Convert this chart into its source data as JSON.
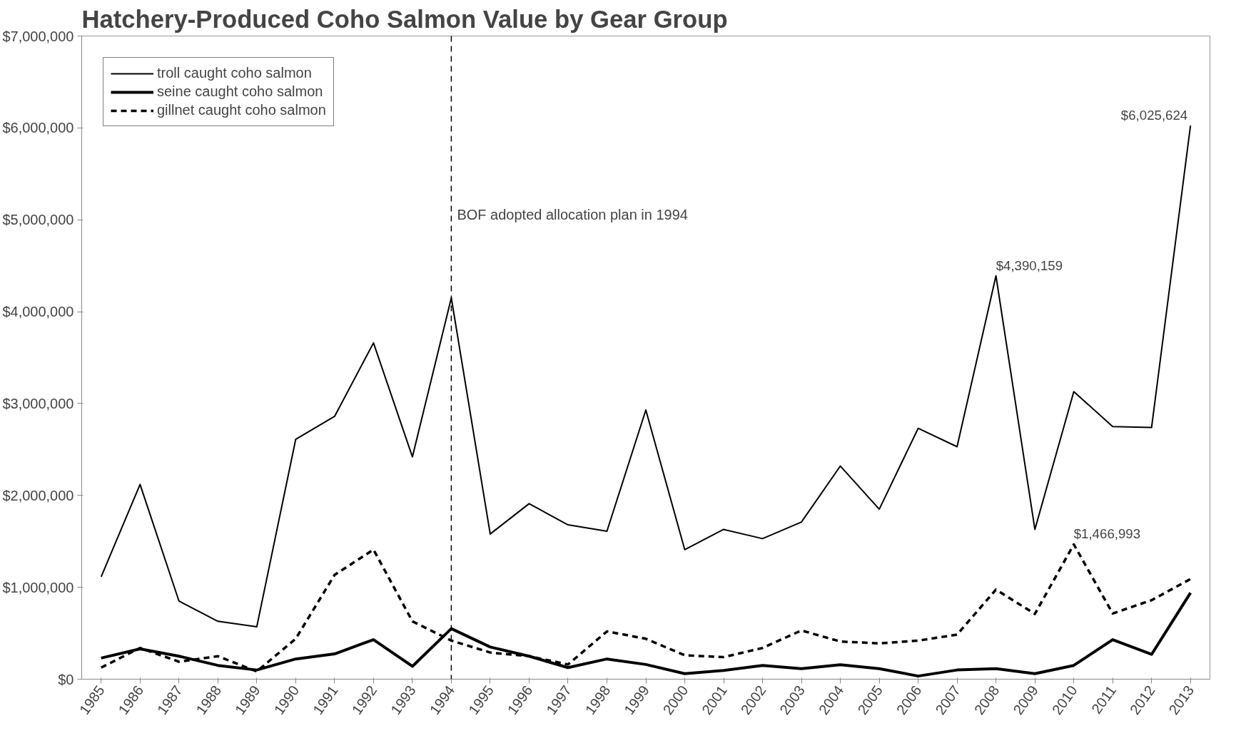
{
  "chart_data": {
    "type": "line",
    "title": "Hatchery-Produced Coho Salmon Value by Gear Group",
    "categories": [
      "1985",
      "1986",
      "1987",
      "1988",
      "1989",
      "1990",
      "1991",
      "1992",
      "1993",
      "1994",
      "1995",
      "1996",
      "1997",
      "1998",
      "1999",
      "2000",
      "2001",
      "2002",
      "2003",
      "2004",
      "2005",
      "2006",
      "2007",
      "2008",
      "2009",
      "2010",
      "2011",
      "2012",
      "2013"
    ],
    "series": [
      {
        "name": "troll caught coho salmon",
        "color": "#000000",
        "line_style": "solid",
        "values": [
          1115000,
          2120000,
          850000,
          630000,
          570000,
          2610000,
          2860000,
          3660000,
          2420000,
          4150000,
          1580000,
          1910000,
          1680000,
          1610000,
          2930000,
          1410000,
          1630000,
          1530000,
          1710000,
          2320000,
          1850000,
          2730000,
          2530000,
          4390159,
          1630000,
          3130000,
          2750000,
          2740000,
          6025624
        ],
        "value_labels": [
          null,
          null,
          null,
          null,
          null,
          null,
          null,
          null,
          null,
          null,
          null,
          null,
          null,
          null,
          null,
          null,
          null,
          null,
          null,
          null,
          null,
          null,
          null,
          "$4,390,159",
          null,
          null,
          null,
          null,
          "$6,025,624"
        ]
      },
      {
        "name": "seine caught coho salmon",
        "color": "#000000",
        "line_style": "solid",
        "values": [
          230000,
          330000,
          250000,
          150000,
          100000,
          220000,
          275000,
          430000,
          140000,
          550000,
          350000,
          250000,
          126000,
          220000,
          160000,
          60000,
          95000,
          150000,
          115000,
          157000,
          115000,
          34000,
          100000,
          115000,
          60000,
          150000,
          430000,
          270000,
          940000
        ]
      },
      {
        "name": "gillnet caught coho salmon",
        "color": "#000000",
        "line_style": "dashed",
        "values": [
          126000,
          340000,
          190000,
          250000,
          84000,
          440000,
          1135000,
          1410000,
          630000,
          420000,
          290000,
          250000,
          160000,
          520000,
          440000,
          260000,
          240000,
          340000,
          530000,
          410000,
          390000,
          420000,
          485000,
          975000,
          710000,
          1466993,
          715000,
          860000,
          1090000
        ],
        "value_labels": [
          null,
          null,
          null,
          null,
          null,
          null,
          null,
          null,
          null,
          null,
          null,
          null,
          null,
          null,
          null,
          null,
          null,
          null,
          null,
          null,
          null,
          null,
          null,
          null,
          null,
          "$1,466,993",
          null,
          null,
          null
        ]
      }
    ],
    "ylim": [
      0,
      7000000
    ],
    "yticks": [
      {
        "value": 0,
        "label": "$0"
      },
      {
        "value": 1000000,
        "label": "$1,000,000"
      },
      {
        "value": 2000000,
        "label": "$2,000,000"
      },
      {
        "value": 3000000,
        "label": "$3,000,000"
      },
      {
        "value": 4000000,
        "label": "$4,000,000"
      },
      {
        "value": 5000000,
        "label": "$5,000,000"
      },
      {
        "value": 6000000,
        "label": "$6,000,000"
      },
      {
        "value": 7000000,
        "label": "$7,000,000"
      }
    ],
    "ref_lines": [
      {
        "axis": "x",
        "value": "1994",
        "label": "BOF adopted allocation plan in 1994",
        "color": "#000000",
        "line_style": "dashed"
      }
    ],
    "legend": "top left"
  }
}
